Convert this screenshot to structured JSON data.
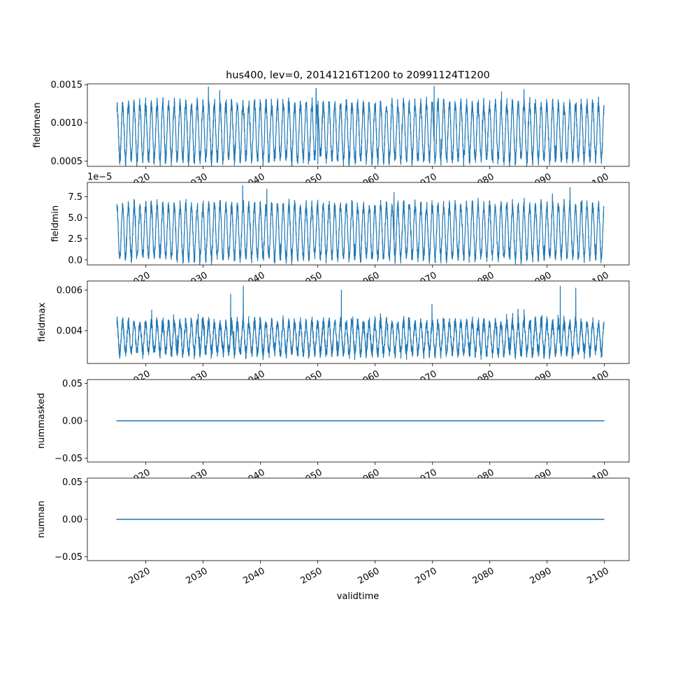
{
  "figure": {
    "title": "hus400, lev=0, 20141216T1200 to 20991124T1200",
    "xlabel": "validtime",
    "line_color": "#1f77b4"
  },
  "chart_data": [
    {
      "type": "line",
      "ylabel": "fieldmean",
      "offset_text": "",
      "ylim": [
        0.00043,
        0.00151
      ],
      "yticks": [
        0.0005,
        0.001,
        0.0015
      ],
      "ytick_labels": [
        "0.0005",
        "0.0010",
        "0.0015"
      ],
      "xlim": [
        2009.8,
        2104.3
      ],
      "xticks": [
        2020,
        2030,
        2040,
        2050,
        2060,
        2070,
        2080,
        2090,
        2100
      ],
      "xtick_labels": [
        "2020",
        "2030",
        "2040",
        "2050",
        "2060",
        "2070",
        "2080",
        "2090",
        "2100"
      ],
      "x_start": 2014.96,
      "x_end": 2099.9,
      "seasonal_low": 0.00052,
      "seasonal_high": 0.00124,
      "noise": 6e-05,
      "extremes": [
        [
          2049.7,
          0.00145
        ],
        [
          2070.3,
          0.00148
        ],
        [
          2050.0,
          0.00046
        ],
        [
          2056.6,
          0.00048
        ]
      ],
      "series": [
        {
          "values_shown_as": "seasonal oscillation"
        }
      ]
    },
    {
      "type": "line",
      "ylabel": "fieldmin",
      "offset_text": "1e−5",
      "ylim": [
        -0.6,
        9.2
      ],
      "yticks": [
        0.0,
        2.5,
        5.0,
        7.5
      ],
      "ytick_labels": [
        "0.0",
        "2.5",
        "5.0",
        "7.5"
      ],
      "xlim": [
        2009.8,
        2104.3
      ],
      "xticks": [
        2020,
        2030,
        2040,
        2050,
        2060,
        2070,
        2080,
        2090,
        2100
      ],
      "xtick_labels": [
        "2020",
        "2030",
        "2040",
        "2050",
        "2060",
        "2070",
        "2080",
        "2090",
        "2100"
      ],
      "x_start": 2014.96,
      "x_end": 2099.9,
      "seasonal_low": 0.3,
      "seasonal_high": 6.4,
      "noise": 0.5,
      "extremes": [
        [
          2036.9,
          8.8
        ],
        [
          2041.1,
          8.4
        ],
        [
          2094.0,
          8.6
        ],
        [
          2063.3,
          8.0
        ]
      ],
      "series": [
        {
          "values_shown_as": "seasonal oscillation"
        }
      ]
    },
    {
      "type": "line",
      "ylabel": "fieldmax",
      "offset_text": "",
      "ylim": [
        0.00238,
        0.00645
      ],
      "yticks": [
        0.004,
        0.006
      ],
      "ytick_labels": [
        "0.004",
        "0.006"
      ],
      "xlim": [
        2009.8,
        2104.3
      ],
      "xticks": [
        2020,
        2030,
        2040,
        2050,
        2060,
        2070,
        2080,
        2090,
        2100
      ],
      "xtick_labels": [
        "2020",
        "2030",
        "2040",
        "2050",
        "2060",
        "2070",
        "2080",
        "2090",
        "2100"
      ],
      "x_start": 2014.96,
      "x_end": 2099.9,
      "seasonal_low": 0.0029,
      "seasonal_high": 0.0044,
      "noise": 0.00025,
      "extremes": [
        [
          2037.0,
          0.0062
        ],
        [
          2092.3,
          0.0062
        ],
        [
          2034.8,
          0.0058
        ],
        [
          2054.1,
          0.006
        ],
        [
          2095.0,
          0.0061
        ]
      ],
      "series": [
        {
          "values_shown_as": "seasonal oscillation with spikes"
        }
      ]
    },
    {
      "type": "line",
      "ylabel": "nummasked",
      "offset_text": "",
      "ylim": [
        -0.055,
        0.055
      ],
      "yticks": [
        -0.05,
        0.0,
        0.05
      ],
      "ytick_labels": [
        "−0.05",
        "0.00",
        "0.05"
      ],
      "xlim": [
        2009.8,
        2104.3
      ],
      "xticks": [
        2020,
        2030,
        2040,
        2050,
        2060,
        2070,
        2080,
        2090,
        2100
      ],
      "xtick_labels": [
        "2020",
        "2030",
        "2040",
        "2050",
        "2060",
        "2070",
        "2080",
        "2090",
        "2100"
      ],
      "x": [
        2014.96,
        2099.9
      ],
      "y": [
        0.0,
        0.0
      ],
      "series": [
        {
          "values_shown_as": "constant"
        }
      ]
    },
    {
      "type": "line",
      "ylabel": "numnan",
      "offset_text": "",
      "ylim": [
        -0.055,
        0.055
      ],
      "yticks": [
        -0.05,
        0.0,
        0.05
      ],
      "ytick_labels": [
        "−0.05",
        "0.00",
        "0.05"
      ],
      "xlim": [
        2009.8,
        2104.3
      ],
      "xticks": [
        2020,
        2030,
        2040,
        2050,
        2060,
        2070,
        2080,
        2090,
        2100
      ],
      "xtick_labels": [
        "2020",
        "2030",
        "2040",
        "2050",
        "2060",
        "2070",
        "2080",
        "2090",
        "2100"
      ],
      "x": [
        2014.96,
        2099.9
      ],
      "y": [
        0.0,
        0.0
      ],
      "series": [
        {
          "values_shown_as": "constant"
        }
      ]
    }
  ]
}
